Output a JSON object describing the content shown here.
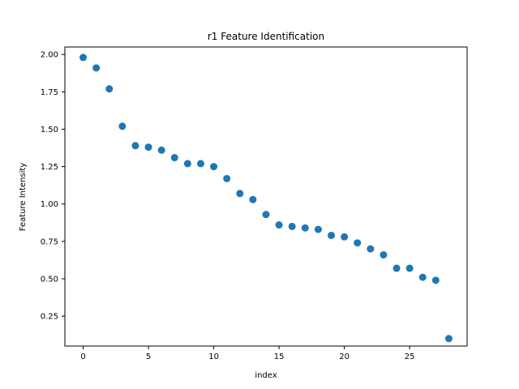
{
  "chart_data": {
    "type": "scatter",
    "title": "r1 Feature Identification",
    "xlabel": "index",
    "ylabel": "Feature Intensity",
    "xlim": [
      -1.4,
      29.4
    ],
    "ylim": [
      0.05,
      2.05
    ],
    "xticks": [
      0,
      5,
      10,
      15,
      20,
      25
    ],
    "xtick_labels": [
      "0",
      "5",
      "10",
      "15",
      "20",
      "25"
    ],
    "yticks": [
      0.25,
      0.5,
      0.75,
      1.0,
      1.25,
      1.5,
      1.75,
      2.0
    ],
    "ytick_labels": [
      "0.25",
      "0.50",
      "0.75",
      "1.00",
      "1.25",
      "1.50",
      "1.75",
      "2.00"
    ],
    "grid": false,
    "color": "#1f77b4",
    "x": [
      0,
      1,
      2,
      3,
      4,
      5,
      6,
      7,
      8,
      9,
      10,
      11,
      12,
      13,
      14,
      15,
      16,
      17,
      18,
      19,
      20,
      21,
      22,
      23,
      24,
      25,
      26,
      27,
      28
    ],
    "y": [
      1.98,
      1.91,
      1.77,
      1.52,
      1.39,
      1.38,
      1.36,
      1.31,
      1.27,
      1.27,
      1.25,
      1.17,
      1.07,
      1.03,
      0.93,
      0.86,
      0.85,
      0.84,
      0.83,
      0.79,
      0.78,
      0.74,
      0.7,
      0.66,
      0.57,
      0.57,
      0.51,
      0.49,
      0.1
    ]
  }
}
